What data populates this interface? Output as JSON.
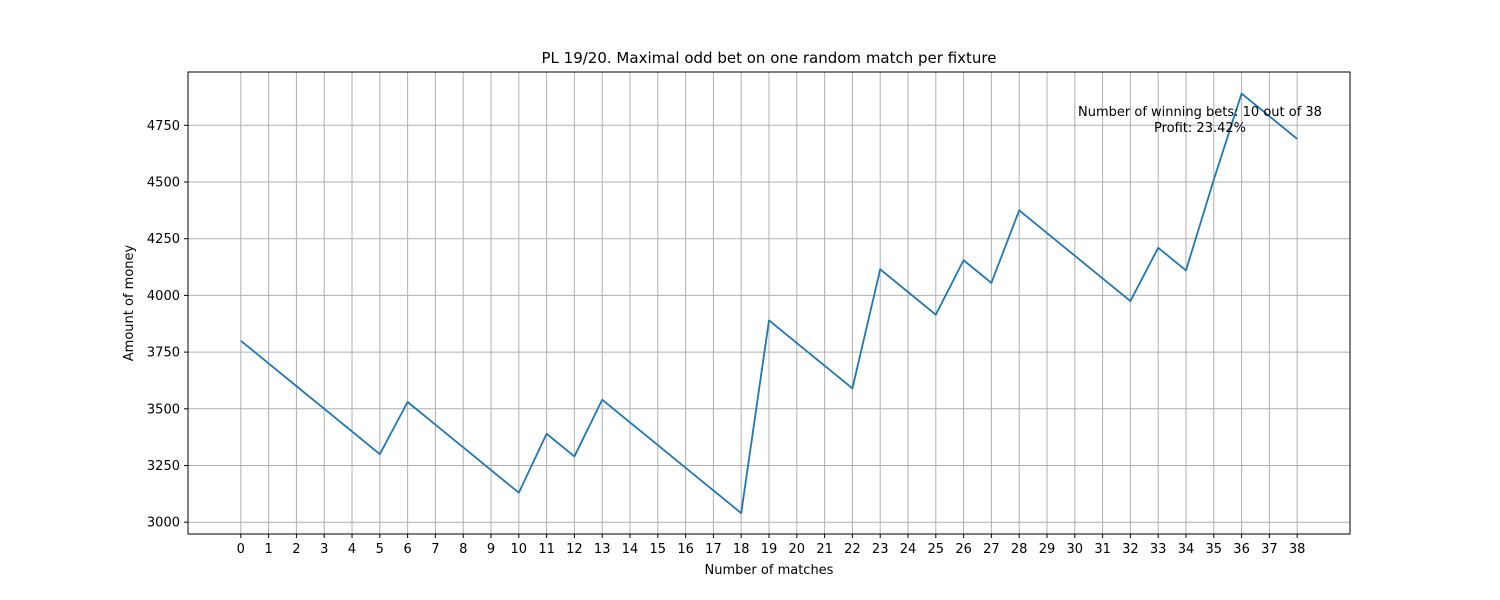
{
  "chart_data": {
    "type": "line",
    "title": "PL 19/20. Maximal odd bet on one random match per fixture",
    "xlabel": "Number of matches",
    "ylabel": "Amount of money",
    "xlim": [
      -1.9,
      39.9
    ],
    "ylim": [
      2948,
      4985
    ],
    "x_ticks": [
      0,
      1,
      2,
      3,
      4,
      5,
      6,
      7,
      8,
      9,
      10,
      11,
      12,
      13,
      14,
      15,
      16,
      17,
      18,
      19,
      20,
      21,
      22,
      23,
      24,
      25,
      26,
      27,
      28,
      29,
      30,
      31,
      32,
      33,
      34,
      35,
      36,
      37,
      38
    ],
    "y_ticks": [
      3000,
      3250,
      3500,
      3750,
      4000,
      4250,
      4500,
      4750
    ],
    "grid": true,
    "legend": "none",
    "line_color": "#1f77b4",
    "series": [
      {
        "x": [
          0,
          1,
          2,
          3,
          4,
          5,
          6,
          7,
          8,
          9,
          10,
          11,
          12,
          13,
          14,
          15,
          16,
          17,
          18,
          19,
          20,
          21,
          22,
          23,
          24,
          25,
          26,
          27,
          28,
          29,
          30,
          31,
          32,
          33,
          34,
          35,
          36,
          37,
          38
        ],
        "values": [
          3800,
          3700,
          3600,
          3500,
          3400,
          3300,
          3530,
          3430,
          3330,
          3230,
          3130,
          3390,
          3290,
          3540,
          3440,
          3340,
          3240,
          3140,
          3040,
          3890,
          3790,
          3690,
          3590,
          4115,
          4015,
          3915,
          4155,
          4055,
          4375,
          4275,
          4175,
          4075,
          3975,
          4210,
          4110,
          4510,
          4890,
          4790,
          4690
        ]
      }
    ],
    "annotation": {
      "line1": "Number of winning bets: 10 out of 38",
      "line2": "Profit: 23.42%"
    }
  }
}
